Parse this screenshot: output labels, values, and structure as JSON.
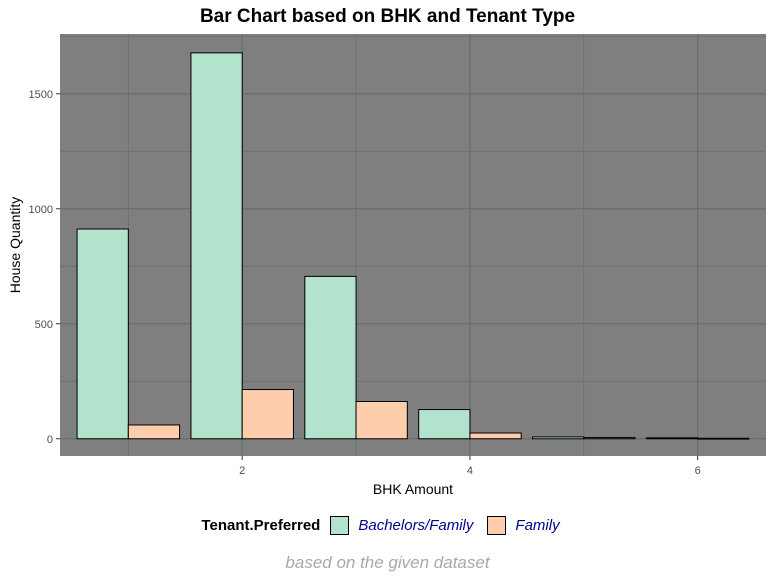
{
  "chart_data": {
    "type": "bar",
    "title": "Bar Chart based on BHK and Tenant Type",
    "xlabel": "BHK Amount",
    "ylabel": "House Quantity",
    "caption": "based on the given dataset",
    "x": [
      1,
      2,
      3,
      4,
      5,
      6
    ],
    "xticks": [
      2,
      4,
      6
    ],
    "yticks": [
      0,
      500,
      1000,
      1500
    ],
    "ylim": [
      -75,
      1760
    ],
    "xlim": [
      0.4,
      6.6
    ],
    "grid": true,
    "legend_position": "bottom",
    "legend_title": "Tenant.Preferred",
    "panel_color": "#7f7f7f",
    "series": [
      {
        "name": "Bachelors/Family",
        "color": "#b3e2cd",
        "values": [
          912,
          1678,
          706,
          127,
          8,
          4
        ]
      },
      {
        "name": "Family",
        "color": "#fdcdac",
        "values": [
          60,
          214,
          162,
          25,
          5,
          2
        ]
      }
    ]
  }
}
